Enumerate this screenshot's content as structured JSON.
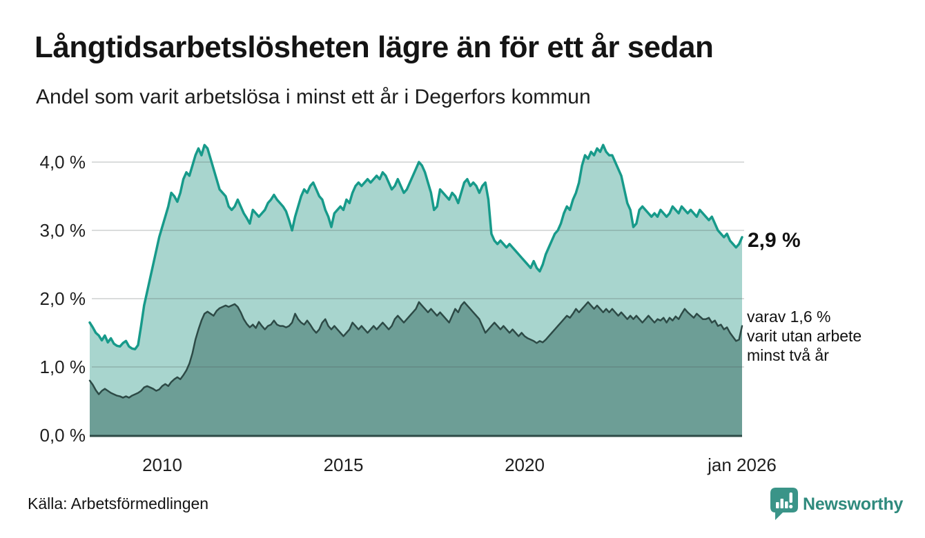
{
  "header": {
    "title": "Långtidsarbetslösheten lägre än för ett år sedan",
    "subtitle": "Andel som varit arbetslösa i minst ett år i Degerfors kommun"
  },
  "annotations": {
    "latest_value": "2,9 %",
    "sub_lines": [
      "varav 1,6 %",
      "varit utan arbete",
      "minst två år"
    ]
  },
  "footer": {
    "source": "Källa: Arbetsförmedlingen",
    "brand": "Newsworthy"
  },
  "colors": {
    "background": "#ffffff",
    "title_text": "#141414",
    "axis_text": "#1f1f1f",
    "gridline_overlay": "rgba(70,80,78,0.20)",
    "axis_line": "#2d4a46",
    "series1_line": "#179a8a",
    "series1_fill": "#a8d5ce",
    "series2_line": "#2d4a46",
    "series2_fill": "#6d9e96",
    "brand_teal": "#2f8a7d",
    "logo_bubble": "#3a9488"
  },
  "chart_data": {
    "type": "area",
    "title": "Långtidsarbetslösheten lägre än för ett år sedan",
    "subtitle": "Andel som varit arbetslösa i minst ett år i Degerfors kommun",
    "unit": "%",
    "frequency": "monthly",
    "x_start": "2008-01",
    "x_end": "2026-01",
    "ylim": [
      0,
      4.3
    ],
    "grid": true,
    "legend": "annotations at line ends",
    "y_ticks": [
      {
        "label": "0,0 %",
        "value": 0
      },
      {
        "label": "1,0 %",
        "value": 1
      },
      {
        "label": "2,0 %",
        "value": 2
      },
      {
        "label": "3,0 %",
        "value": 3
      },
      {
        "label": "4,0 %",
        "value": 4
      }
    ],
    "x_ticks": [
      {
        "label": "2010",
        "month_index": 24
      },
      {
        "label": "2015",
        "month_index": 84
      },
      {
        "label": "2020",
        "month_index": 144
      },
      {
        "label": "jan 2026",
        "month_index": 216
      }
    ],
    "series": [
      {
        "name": "Andel arbetslösa minst ett år",
        "latest_label": "2,9 %",
        "latest_value": 2.9,
        "color": "#179a8a",
        "fill": "#a8d5ce",
        "values": [
          1.65,
          1.58,
          1.5,
          1.46,
          1.39,
          1.46,
          1.36,
          1.42,
          1.34,
          1.31,
          1.3,
          1.35,
          1.38,
          1.3,
          1.27,
          1.26,
          1.32,
          1.6,
          1.9,
          2.1,
          2.3,
          2.5,
          2.7,
          2.9,
          3.05,
          3.2,
          3.35,
          3.55,
          3.5,
          3.42,
          3.55,
          3.75,
          3.85,
          3.8,
          3.95,
          4.1,
          4.2,
          4.1,
          4.25,
          4.2,
          4.05,
          3.9,
          3.75,
          3.6,
          3.55,
          3.5,
          3.35,
          3.3,
          3.35,
          3.45,
          3.35,
          3.25,
          3.18,
          3.1,
          3.3,
          3.25,
          3.2,
          3.25,
          3.3,
          3.4,
          3.45,
          3.52,
          3.45,
          3.4,
          3.35,
          3.28,
          3.15,
          3.0,
          3.2,
          3.35,
          3.5,
          3.6,
          3.55,
          3.65,
          3.7,
          3.6,
          3.5,
          3.45,
          3.3,
          3.2,
          3.05,
          3.25,
          3.3,
          3.35,
          3.3,
          3.45,
          3.4,
          3.55,
          3.65,
          3.7,
          3.65,
          3.7,
          3.75,
          3.7,
          3.75,
          3.8,
          3.75,
          3.85,
          3.8,
          3.7,
          3.6,
          3.65,
          3.75,
          3.65,
          3.55,
          3.6,
          3.7,
          3.8,
          3.9,
          4.0,
          3.95,
          3.85,
          3.7,
          3.55,
          3.3,
          3.35,
          3.6,
          3.55,
          3.5,
          3.45,
          3.55,
          3.5,
          3.4,
          3.55,
          3.7,
          3.75,
          3.65,
          3.7,
          3.65,
          3.55,
          3.65,
          3.7,
          3.45,
          2.95,
          2.85,
          2.8,
          2.85,
          2.8,
          2.75,
          2.8,
          2.75,
          2.7,
          2.65,
          2.6,
          2.55,
          2.5,
          2.45,
          2.55,
          2.45,
          2.4,
          2.5,
          2.65,
          2.75,
          2.85,
          2.95,
          3.0,
          3.1,
          3.25,
          3.35,
          3.3,
          3.45,
          3.55,
          3.7,
          3.95,
          4.1,
          4.05,
          4.15,
          4.1,
          4.2,
          4.15,
          4.25,
          4.15,
          4.1,
          4.1,
          4.0,
          3.9,
          3.8,
          3.6,
          3.4,
          3.3,
          3.05,
          3.1,
          3.3,
          3.35,
          3.3,
          3.25,
          3.2,
          3.25,
          3.2,
          3.3,
          3.25,
          3.2,
          3.25,
          3.35,
          3.3,
          3.25,
          3.35,
          3.3,
          3.25,
          3.3,
          3.25,
          3.2,
          3.3,
          3.25,
          3.2,
          3.15,
          3.2,
          3.1,
          3.0,
          2.95,
          2.9,
          2.95,
          2.85,
          2.8,
          2.75,
          2.8,
          2.9
        ]
      },
      {
        "name": "Andel arbetslösa minst två år",
        "latest_label": "varav 1,6 % varit utan arbete minst två år",
        "latest_value": 1.6,
        "color": "#2d4a46",
        "fill": "#6d9e96",
        "values": [
          0.8,
          0.74,
          0.66,
          0.6,
          0.65,
          0.68,
          0.65,
          0.62,
          0.6,
          0.58,
          0.57,
          0.55,
          0.57,
          0.55,
          0.58,
          0.6,
          0.62,
          0.65,
          0.7,
          0.72,
          0.7,
          0.68,
          0.65,
          0.67,
          0.72,
          0.75,
          0.72,
          0.78,
          0.82,
          0.85,
          0.82,
          0.88,
          0.95,
          1.05,
          1.2,
          1.4,
          1.55,
          1.68,
          1.78,
          1.81,
          1.78,
          1.75,
          1.82,
          1.86,
          1.88,
          1.9,
          1.88,
          1.9,
          1.92,
          1.88,
          1.8,
          1.7,
          1.63,
          1.58,
          1.62,
          1.57,
          1.66,
          1.6,
          1.55,
          1.6,
          1.62,
          1.68,
          1.62,
          1.6,
          1.6,
          1.58,
          1.6,
          1.65,
          1.78,
          1.7,
          1.65,
          1.62,
          1.68,
          1.62,
          1.55,
          1.5,
          1.55,
          1.65,
          1.7,
          1.6,
          1.55,
          1.6,
          1.55,
          1.5,
          1.45,
          1.5,
          1.55,
          1.65,
          1.6,
          1.55,
          1.6,
          1.55,
          1.5,
          1.55,
          1.6,
          1.55,
          1.6,
          1.65,
          1.6,
          1.55,
          1.6,
          1.7,
          1.75,
          1.7,
          1.65,
          1.7,
          1.75,
          1.8,
          1.85,
          1.95,
          1.9,
          1.85,
          1.8,
          1.85,
          1.8,
          1.75,
          1.8,
          1.75,
          1.7,
          1.65,
          1.75,
          1.85,
          1.8,
          1.9,
          1.95,
          1.9,
          1.85,
          1.8,
          1.75,
          1.7,
          1.6,
          1.5,
          1.55,
          1.6,
          1.65,
          1.6,
          1.55,
          1.6,
          1.55,
          1.5,
          1.55,
          1.5,
          1.45,
          1.5,
          1.45,
          1.42,
          1.4,
          1.38,
          1.35,
          1.38,
          1.36,
          1.4,
          1.45,
          1.5,
          1.55,
          1.6,
          1.65,
          1.7,
          1.75,
          1.72,
          1.78,
          1.85,
          1.8,
          1.85,
          1.9,
          1.95,
          1.9,
          1.85,
          1.9,
          1.85,
          1.8,
          1.85,
          1.8,
          1.85,
          1.8,
          1.75,
          1.8,
          1.75,
          1.7,
          1.75,
          1.7,
          1.75,
          1.7,
          1.65,
          1.7,
          1.75,
          1.7,
          1.65,
          1.7,
          1.68,
          1.72,
          1.65,
          1.72,
          1.68,
          1.74,
          1.7,
          1.78,
          1.85,
          1.8,
          1.76,
          1.72,
          1.78,
          1.74,
          1.7,
          1.7,
          1.72,
          1.65,
          1.68,
          1.6,
          1.62,
          1.55,
          1.58,
          1.5,
          1.44,
          1.38,
          1.4,
          1.6
        ]
      }
    ]
  }
}
